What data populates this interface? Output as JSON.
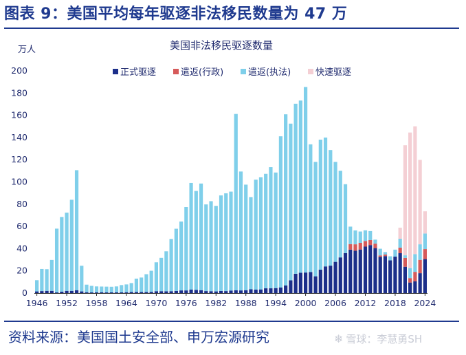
{
  "figure": {
    "title": "图表 9：美国平均每年驱逐非法移民数量为 47 万",
    "source": "资料来源：美国国土安全部、申万宏源研究",
    "watermark": "雪球：李慧勇SH"
  },
  "chart_data": {
    "type": "bar",
    "stacked": true,
    "title": "美国非法移民驱逐数量",
    "ylabel": "万人",
    "ylim": [
      0,
      200
    ],
    "yticks": [
      0,
      20,
      40,
      60,
      80,
      100,
      120,
      140,
      160,
      180,
      200
    ],
    "xtick_labels": [
      "1946",
      "1952",
      "1958",
      "1964",
      "1970",
      "1976",
      "1982",
      "1988",
      "1994",
      "2000",
      "2006",
      "2012",
      "2018",
      "2024"
    ],
    "legend_position": "top-right",
    "categories": [
      1946,
      1947,
      1948,
      1949,
      1950,
      1951,
      1952,
      1953,
      1954,
      1955,
      1956,
      1957,
      1958,
      1959,
      1960,
      1961,
      1962,
      1963,
      1964,
      1965,
      1966,
      1967,
      1968,
      1969,
      1970,
      1971,
      1972,
      1973,
      1974,
      1975,
      1976,
      1977,
      1978,
      1979,
      1980,
      1981,
      1982,
      1983,
      1984,
      1985,
      1986,
      1987,
      1988,
      1989,
      1990,
      1991,
      1992,
      1993,
      1994,
      1995,
      1996,
      1997,
      1998,
      1999,
      2000,
      2001,
      2002,
      2003,
      2004,
      2005,
      2006,
      2007,
      2008,
      2009,
      2010,
      2011,
      2012,
      2013,
      2014,
      2015,
      2016,
      2017,
      2018,
      2019,
      2020,
      2021,
      2022,
      2023,
      2024
    ],
    "series": [
      {
        "name": "正式驱逐",
        "color": "#1c2f8a",
        "values": [
          1.5,
          1.8,
          2.0,
          2.0,
          0.6,
          1.3,
          2.0,
          2.0,
          2.6,
          1.5,
          0.8,
          0.6,
          0.7,
          0.8,
          0.6,
          0.7,
          0.7,
          0.7,
          0.8,
          1.0,
          1.0,
          1.0,
          1.0,
          1.1,
          1.7,
          1.7,
          1.6,
          1.7,
          1.9,
          2.4,
          2.4,
          3.1,
          2.9,
          2.6,
          1.8,
          1.7,
          1.5,
          1.9,
          1.8,
          2.3,
          2.5,
          2.4,
          2.6,
          3.4,
          3.1,
          3.3,
          4.3,
          4.3,
          4.5,
          5.1,
          6.9,
          11.5,
          17.4,
          18.3,
          18.5,
          18.9,
          15.1,
          21.1,
          24.0,
          24.7,
          28.1,
          32.1,
          36.0,
          39.1,
          38.1,
          39.2,
          41.8,
          43.2,
          40.5,
          32.6,
          33.3,
          29.5,
          32.8,
          35.9,
          23.7,
          9.5,
          10.6,
          17.9,
          30.6
        ]
      },
      {
        "name": "遣返(行政)",
        "color": "#d65a5a",
        "values": [
          0,
          0,
          0,
          0,
          0,
          0,
          0,
          0,
          0,
          0,
          0,
          0,
          0,
          0,
          0,
          0,
          0,
          0,
          0,
          0,
          0,
          0,
          0,
          0,
          0,
          0,
          0,
          0,
          0,
          0,
          0,
          0,
          0,
          0,
          0,
          0,
          0,
          0,
          0,
          0,
          0,
          0,
          0,
          0,
          0,
          0,
          0,
          0,
          0,
          0,
          0,
          0,
          0,
          0,
          0,
          0,
          0,
          0,
          0,
          0,
          0,
          0,
          0,
          5.0,
          5.8,
          6.0,
          5.1,
          4.5,
          4.0,
          1.3,
          1.4,
          0,
          0,
          5.0,
          8.0,
          4.0,
          8.5,
          12.0,
          9.0
        ]
      },
      {
        "name": "遣返(执法)",
        "color": "#7fcfea",
        "values": [
          10.1,
          19.9,
          19.5,
          27.8,
          57.4,
          67.2,
          70.4,
          82.0,
          108.0,
          23.1,
          6.8,
          5.9,
          5.3,
          5.1,
          5.2,
          5.0,
          5.3,
          6.5,
          7.0,
          8.0,
          12.0,
          13.0,
          16.0,
          19.0,
          26.0,
          30.0,
          36.0,
          47.0,
          56.0,
          62.0,
          75.0,
          96.0,
          89.0,
          96.0,
          78.0,
          81.0,
          77.0,
          86.0,
          88.0,
          89.0,
          158.7,
          107.0,
          95.0,
          83.0,
          99.0,
          101.0,
          103.0,
          109.0,
          104.0,
          136.0,
          154.0,
          141.0,
          153.0,
          155.0,
          167.0,
          115.0,
          103.0,
          117.0,
          116.0,
          104.0,
          90.0,
          78.0,
          62.0,
          15.7,
          12.5,
          10.2,
          9.6,
          8.1,
          3.6,
          6.0,
          2.2,
          3.6,
          6.3,
          8.0,
          2.3,
          9.0,
          16.0,
          14.0,
          14.0
        ]
      },
      {
        "name": "快速驱逐",
        "color": "#f4cfd4",
        "values": [
          0,
          0,
          0,
          0,
          0,
          0,
          0,
          0,
          0,
          0,
          0,
          0,
          0,
          0,
          0,
          0,
          0,
          0,
          0,
          0,
          0,
          0,
          0,
          0,
          0,
          0,
          0,
          0,
          0,
          0,
          0,
          0,
          0,
          0,
          0,
          0,
          0,
          0,
          0,
          0,
          0,
          0,
          0,
          0,
          0,
          0,
          0,
          0,
          0,
          0,
          0,
          0,
          0,
          0,
          0,
          0,
          0,
          0,
          0,
          0,
          0,
          0,
          0,
          0,
          0,
          0,
          0,
          0,
          0,
          0,
          0,
          0,
          0,
          10.0,
          99.0,
          122.0,
          115.0,
          76.0,
          20.0
        ]
      }
    ]
  }
}
